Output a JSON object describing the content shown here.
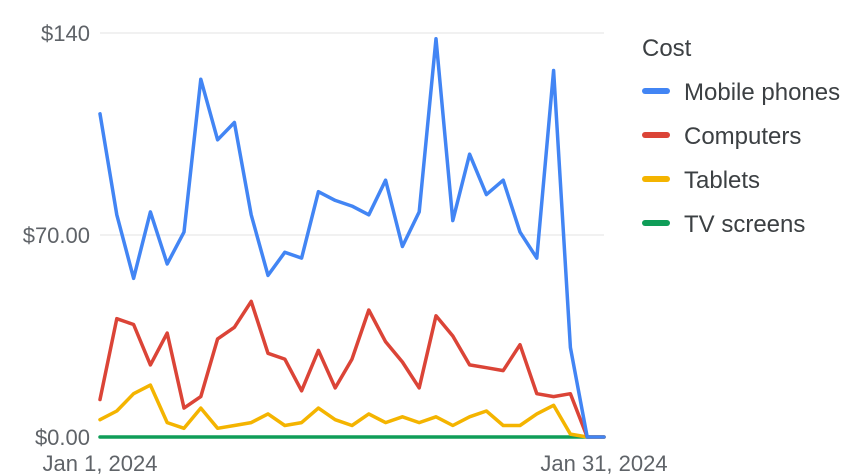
{
  "legend": {
    "title": "Cost"
  },
  "chart_data": {
    "type": "line",
    "title": "",
    "xlabel": "",
    "ylabel": "",
    "ylim": [
      0,
      140
    ],
    "y_ticks": [
      {
        "value": 0,
        "label": "$0.00"
      },
      {
        "value": 70,
        "label": "$70.00"
      },
      {
        "value": 140,
        "label": "$140"
      }
    ],
    "x_ticks": [
      {
        "index": 0,
        "label": "Jan 1, 2024"
      },
      {
        "index": 30,
        "label": "Jan 31, 2024"
      }
    ],
    "grid": true,
    "legend_position": "right",
    "x": [
      "2024-01-01",
      "2024-01-02",
      "2024-01-03",
      "2024-01-04",
      "2024-01-05",
      "2024-01-06",
      "2024-01-07",
      "2024-01-08",
      "2024-01-09",
      "2024-01-10",
      "2024-01-11",
      "2024-01-12",
      "2024-01-13",
      "2024-01-14",
      "2024-01-15",
      "2024-01-16",
      "2024-01-17",
      "2024-01-18",
      "2024-01-19",
      "2024-01-20",
      "2024-01-21",
      "2024-01-22",
      "2024-01-23",
      "2024-01-24",
      "2024-01-25",
      "2024-01-26",
      "2024-01-27",
      "2024-01-28",
      "2024-01-29",
      "2024-01-30",
      "2024-01-31"
    ],
    "series": [
      {
        "name": "Mobile phones",
        "color": "#4285f4",
        "values": [
          112,
          77,
          55,
          78,
          60,
          71,
          124,
          103,
          109,
          77,
          56,
          64,
          62,
          85,
          82,
          80,
          77,
          89,
          66,
          78,
          138,
          75,
          98,
          84,
          89,
          71,
          62,
          127,
          31,
          0,
          0
        ]
      },
      {
        "name": "Computers",
        "color": "#db4437",
        "values": [
          13,
          41,
          39,
          25,
          36,
          10,
          14,
          34,
          38,
          47,
          29,
          27,
          16,
          30,
          17,
          27,
          44,
          33,
          26,
          17,
          42,
          35,
          25,
          24,
          23,
          32,
          15,
          14,
          15,
          0,
          0
        ]
      },
      {
        "name": "Tablets",
        "color": "#f4b400",
        "values": [
          6,
          9,
          15,
          18,
          5,
          3,
          10,
          3,
          4,
          5,
          8,
          4,
          5,
          10,
          6,
          4,
          8,
          5,
          7,
          5,
          7,
          4,
          7,
          9,
          4,
          4,
          8,
          11,
          1,
          0,
          0
        ]
      },
      {
        "name": "TV screens",
        "color": "#0f9d58",
        "values": [
          0,
          0,
          0,
          0,
          0,
          0,
          0,
          0,
          0,
          0,
          0,
          0,
          0,
          0,
          0,
          0,
          0,
          0,
          0,
          0,
          0,
          0,
          0,
          0,
          0,
          0,
          0,
          0,
          0,
          0,
          0
        ]
      }
    ]
  }
}
